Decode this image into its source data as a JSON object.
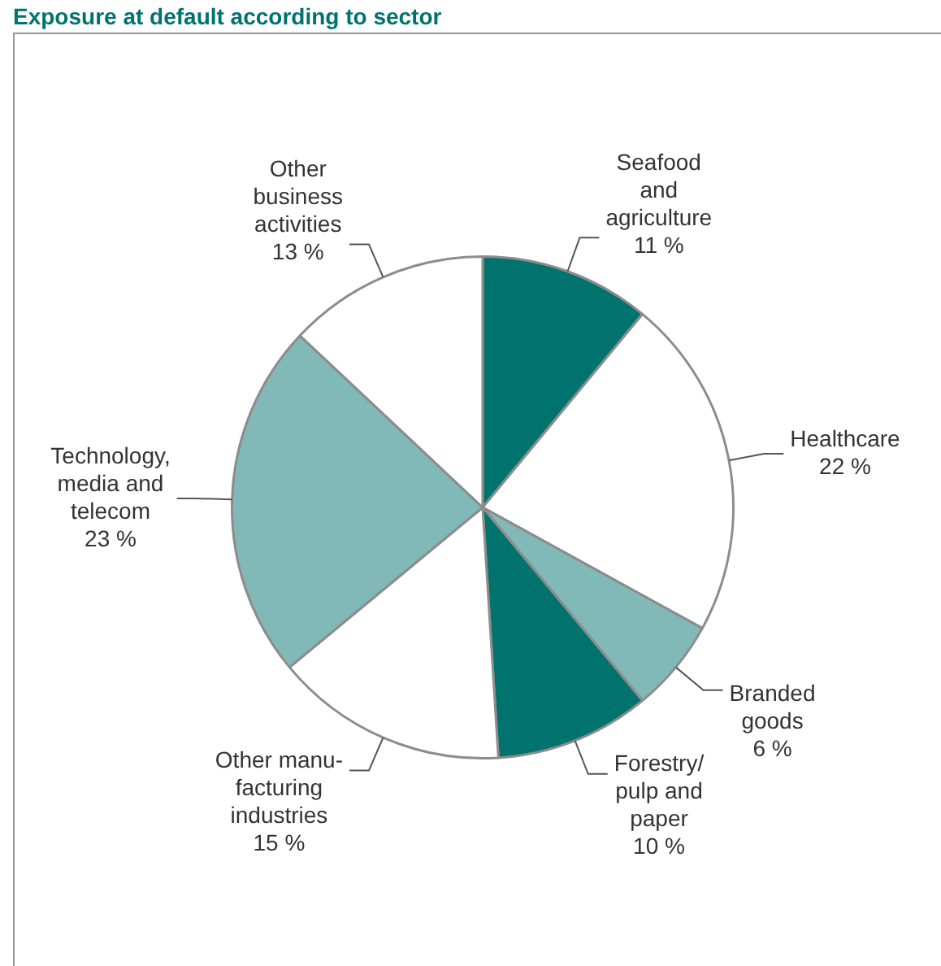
{
  "chart_data": {
    "type": "pie",
    "title": "Exposure at default according to sector",
    "categories": [
      "Seafood\nand\nagriculture",
      "Healthcare",
      "Branded\ngoods",
      "Forestry/\npulp and\npaper",
      "Other manu-\nfacturing\nindustries",
      "Technology,\nmedia and\ntelecom",
      "Other\nbusiness\nactivities"
    ],
    "values": [
      11,
      22,
      6,
      10,
      15,
      23,
      13
    ],
    "colors": [
      "#00736e",
      "#ffffff",
      "#80b9b7",
      "#00736e",
      "#ffffff",
      "#80b9b7",
      "#ffffff"
    ],
    "value_labels": [
      "11 %",
      "22 %",
      "6 %",
      "10 %",
      "15 %",
      "23 %",
      "13 %"
    ],
    "legend": false
  }
}
